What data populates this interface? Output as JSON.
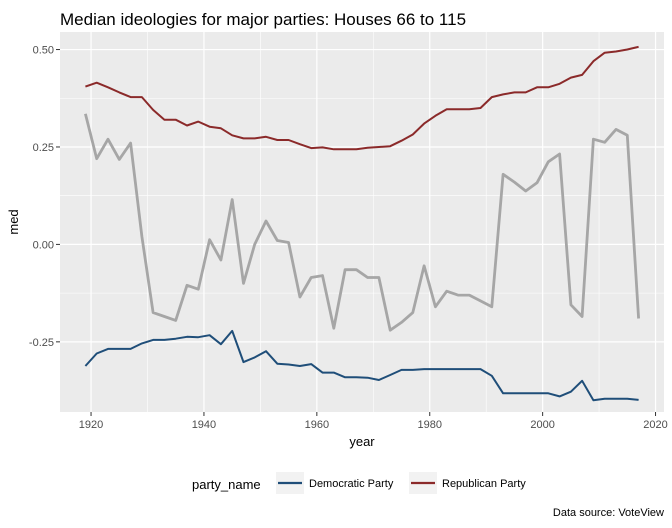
{
  "chart_data": {
    "type": "line",
    "title": "Median ideologies for major parties: Houses 66 to 115",
    "xlabel": "year",
    "ylabel": "med",
    "caption": "Data source: VoteView",
    "xlim": [
      1914.5,
      2021.5
    ],
    "ylim": [
      -0.43,
      0.545
    ],
    "x_ticks": [
      1920,
      1940,
      1960,
      1980,
      2000,
      2020
    ],
    "y_ticks": [
      -0.25,
      0.0,
      0.25,
      0.5
    ],
    "x_tick_labels": [
      "1920",
      "1940",
      "1960",
      "1980",
      "2000",
      "2020"
    ],
    "y_tick_labels": [
      "-0.25",
      "0.00",
      "0.25",
      "0.50"
    ],
    "grid": true,
    "legend": {
      "title": "party_name",
      "position": "bottom",
      "entries": [
        {
          "label": "Democratic Party",
          "color": "#1f4e79"
        },
        {
          "label": "Republican Party",
          "color": "#8b2a2a"
        }
      ]
    },
    "x": [
      1919,
      1921,
      1923,
      1925,
      1927,
      1929,
      1931,
      1933,
      1935,
      1937,
      1939,
      1941,
      1943,
      1945,
      1947,
      1949,
      1951,
      1953,
      1955,
      1957,
      1959,
      1961,
      1963,
      1965,
      1967,
      1969,
      1971,
      1973,
      1975,
      1977,
      1979,
      1981,
      1983,
      1985,
      1987,
      1989,
      1991,
      1993,
      1995,
      1997,
      1999,
      2001,
      2003,
      2005,
      2007,
      2009,
      2011,
      2013,
      2015,
      2017
    ],
    "series": [
      {
        "name": "Democratic Party",
        "color": "#1f4e79",
        "values": [
          -0.312,
          -0.28,
          -0.268,
          -0.268,
          -0.268,
          -0.254,
          -0.245,
          -0.245,
          -0.242,
          -0.237,
          -0.238,
          -0.233,
          -0.256,
          -0.222,
          -0.302,
          -0.29,
          -0.274,
          -0.306,
          -0.308,
          -0.312,
          -0.307,
          -0.329,
          -0.329,
          -0.341,
          -0.341,
          -0.342,
          -0.348,
          -0.335,
          -0.322,
          -0.322,
          -0.32,
          -0.32,
          -0.32,
          -0.32,
          -0.32,
          -0.32,
          -0.337,
          -0.382,
          -0.382,
          -0.382,
          -0.382,
          -0.382,
          -0.39,
          -0.378,
          -0.35,
          -0.4,
          -0.396,
          -0.396,
          -0.396,
          -0.399
        ]
      },
      {
        "name": "Republican Party",
        "color": "#8b2a2a",
        "values": [
          0.405,
          0.415,
          0.403,
          0.39,
          0.378,
          0.378,
          0.345,
          0.32,
          0.32,
          0.305,
          0.315,
          0.302,
          0.298,
          0.28,
          0.272,
          0.272,
          0.276,
          0.268,
          0.268,
          0.257,
          0.247,
          0.249,
          0.244,
          0.244,
          0.244,
          0.248,
          0.25,
          0.252,
          0.266,
          0.282,
          0.31,
          0.33,
          0.347,
          0.347,
          0.347,
          0.35,
          0.378,
          0.385,
          0.39,
          0.39,
          0.403,
          0.403,
          0.412,
          0.428,
          0.435,
          0.47,
          0.492,
          0.495,
          0.5,
          0.507
        ]
      },
      {
        "name": "",
        "color": "#a6a6a6",
        "values": [
          0.335,
          0.22,
          0.27,
          0.218,
          0.26,
          0.02,
          -0.175,
          -0.185,
          -0.195,
          -0.105,
          -0.115,
          0.012,
          -0.04,
          0.115,
          -0.1,
          0.0,
          0.06,
          0.01,
          0.005,
          -0.135,
          -0.085,
          -0.08,
          -0.215,
          -0.065,
          -0.065,
          -0.085,
          -0.085,
          -0.22,
          -0.2,
          -0.175,
          -0.055,
          -0.16,
          -0.12,
          -0.13,
          -0.13,
          -0.145,
          -0.16,
          0.18,
          0.16,
          0.137,
          0.158,
          0.212,
          0.232,
          -0.155,
          -0.185,
          0.27,
          0.262,
          0.295,
          0.28,
          -0.19
        ]
      }
    ]
  }
}
